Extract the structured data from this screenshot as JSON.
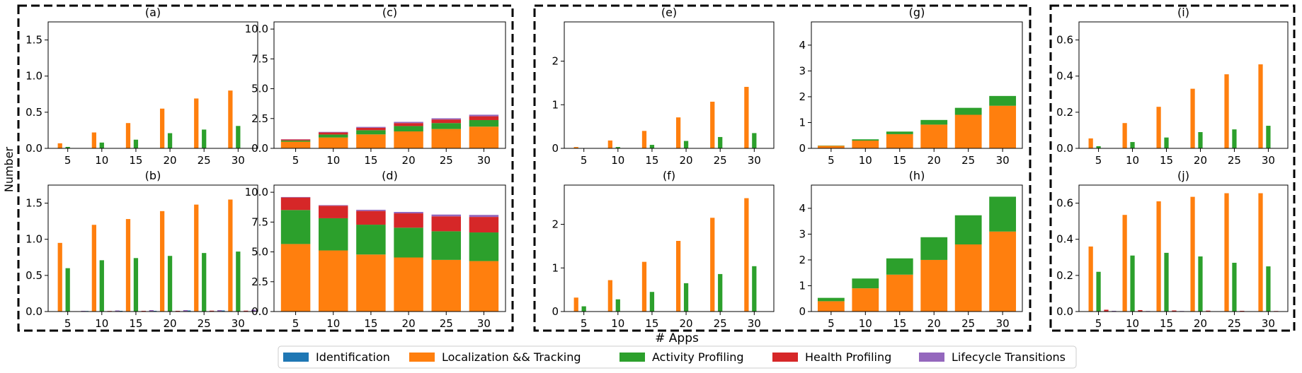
{
  "figure": {
    "ylabel": "Number",
    "xlabel": "# Apps",
    "legend": [
      {
        "label": "Identification",
        "color": "#1f77b4"
      },
      {
        "label": "Localization && Tracking",
        "color": "#ff7f0e"
      },
      {
        "label": "Activity Profiling",
        "color": "#2ca02c"
      },
      {
        "label": "Health Profiling",
        "color": "#d62728"
      },
      {
        "label": "Lifecycle Transitions",
        "color": "#9467bd"
      }
    ]
  },
  "chart_data": [
    {
      "title": "(a)",
      "type": "bar",
      "mode": "grouped",
      "categories": [
        "5",
        "10",
        "15",
        "20",
        "25",
        "30"
      ],
      "ylim": [
        0,
        1.75
      ],
      "yticks": [
        "0.0",
        "0.5",
        "1.0",
        "1.5"
      ],
      "series": [
        {
          "name": "Identification",
          "values": [
            0,
            0,
            0,
            0,
            0,
            0
          ]
        },
        {
          "name": "Localization && Tracking",
          "values": [
            0.07,
            0.22,
            0.35,
            0.55,
            0.69,
            0.8
          ]
        },
        {
          "name": "Activity Profiling",
          "values": [
            0.02,
            0.08,
            0.12,
            0.21,
            0.26,
            0.31
          ]
        },
        {
          "name": "Health Profiling",
          "values": [
            0,
            0,
            0,
            0,
            0,
            0
          ]
        },
        {
          "name": "Lifecycle Transitions",
          "values": [
            0,
            0,
            0,
            0,
            0,
            0
          ]
        }
      ]
    },
    {
      "title": "(b)",
      "type": "bar",
      "mode": "grouped",
      "categories": [
        "5",
        "10",
        "15",
        "20",
        "25",
        "30"
      ],
      "ylim": [
        0,
        1.75
      ],
      "yticks": [
        "0.0",
        "0.5",
        "1.0",
        "1.5"
      ],
      "series": [
        {
          "name": "Identification",
          "values": [
            0.005,
            0.008,
            0.01,
            0.01,
            0.015,
            0.015
          ]
        },
        {
          "name": "Localization && Tracking",
          "values": [
            0.95,
            1.2,
            1.28,
            1.39,
            1.48,
            1.55
          ]
        },
        {
          "name": "Activity Profiling",
          "values": [
            0.6,
            0.71,
            0.74,
            0.77,
            0.81,
            0.83
          ]
        },
        {
          "name": "Health Profiling",
          "values": [
            0.005,
            0.008,
            0.01,
            0.01,
            0.012,
            0.012
          ]
        },
        {
          "name": "Lifecycle Transitions",
          "values": [
            0.01,
            0.015,
            0.02,
            0.02,
            0.02,
            0.025
          ]
        }
      ]
    },
    {
      "title": "(c)",
      "type": "bar",
      "mode": "stacked",
      "categories": [
        "5",
        "10",
        "15",
        "20",
        "25",
        "30"
      ],
      "ylim": [
        0,
        10.6
      ],
      "yticks": [
        "0.0",
        "2.5",
        "5.0",
        "7.5",
        "10.0"
      ],
      "series": [
        {
          "name": "Identification",
          "values": [
            0.01,
            0.01,
            0.02,
            0.02,
            0.02,
            0.02
          ]
        },
        {
          "name": "Localization && Tracking",
          "values": [
            0.55,
            0.9,
            1.15,
            1.4,
            1.6,
            1.8
          ]
        },
        {
          "name": "Activity Profiling",
          "values": [
            0.1,
            0.25,
            0.35,
            0.45,
            0.5,
            0.55
          ]
        },
        {
          "name": "Health Profiling",
          "values": [
            0.08,
            0.17,
            0.2,
            0.25,
            0.3,
            0.32
          ]
        },
        {
          "name": "Lifecycle Transitions",
          "values": [
            0.02,
            0.05,
            0.08,
            0.1,
            0.1,
            0.13
          ]
        }
      ]
    },
    {
      "title": "(d)",
      "type": "bar",
      "mode": "stacked",
      "categories": [
        "5",
        "10",
        "15",
        "20",
        "25",
        "30"
      ],
      "ylim": [
        0,
        10.6
      ],
      "yticks": [
        "0.0",
        "2.5",
        "5.0",
        "7.5",
        "10.0"
      ],
      "series": [
        {
          "name": "Identification",
          "values": [
            0.01,
            0.02,
            0.03,
            0.03,
            0.03,
            0.03
          ]
        },
        {
          "name": "Localization && Tracking",
          "values": [
            5.65,
            5.1,
            4.75,
            4.5,
            4.3,
            4.2
          ]
        },
        {
          "name": "Activity Profiling",
          "values": [
            2.85,
            2.7,
            2.5,
            2.5,
            2.4,
            2.4
          ]
        },
        {
          "name": "Health Profiling",
          "values": [
            1.05,
            1.05,
            1.15,
            1.2,
            1.25,
            1.3
          ]
        },
        {
          "name": "Lifecycle Transitions",
          "values": [
            0.04,
            0.05,
            0.1,
            0.12,
            0.15,
            0.17
          ]
        }
      ]
    },
    {
      "title": "(e)",
      "type": "bar",
      "mode": "grouped",
      "categories": [
        "5",
        "10",
        "15",
        "20",
        "25",
        "30"
      ],
      "ylim": [
        0,
        2.9
      ],
      "yticks": [
        "0",
        "1",
        "2"
      ],
      "series": [
        {
          "name": "Identification",
          "values": [
            0,
            0,
            0,
            0,
            0,
            0
          ]
        },
        {
          "name": "Localization && Tracking",
          "values": [
            0.03,
            0.18,
            0.4,
            0.71,
            1.07,
            1.41
          ]
        },
        {
          "name": "Activity Profiling",
          "values": [
            0.005,
            0.03,
            0.08,
            0.17,
            0.26,
            0.35
          ]
        },
        {
          "name": "Health Profiling",
          "values": [
            0,
            0,
            0,
            0,
            0,
            0
          ]
        },
        {
          "name": "Lifecycle Transitions",
          "values": [
            0,
            0,
            0,
            0,
            0,
            0
          ]
        }
      ]
    },
    {
      "title": "(f)",
      "type": "bar",
      "mode": "grouped",
      "categories": [
        "5",
        "10",
        "15",
        "20",
        "25",
        "30"
      ],
      "ylim": [
        0,
        2.9
      ],
      "yticks": [
        "0",
        "1",
        "2"
      ],
      "series": [
        {
          "name": "Identification",
          "values": [
            0,
            0,
            0,
            0,
            0,
            0
          ]
        },
        {
          "name": "Localization && Tracking",
          "values": [
            0.32,
            0.72,
            1.14,
            1.62,
            2.15,
            2.6
          ]
        },
        {
          "name": "Activity Profiling",
          "values": [
            0.12,
            0.28,
            0.45,
            0.65,
            0.86,
            1.04
          ]
        },
        {
          "name": "Health Profiling",
          "values": [
            0,
            0,
            0,
            0,
            0,
            0
          ]
        },
        {
          "name": "Lifecycle Transitions",
          "values": [
            0,
            0,
            0,
            0,
            0,
            0
          ]
        }
      ]
    },
    {
      "title": "(g)",
      "type": "bar",
      "mode": "stacked",
      "categories": [
        "5",
        "10",
        "15",
        "20",
        "25",
        "30"
      ],
      "ylim": [
        0,
        4.9
      ],
      "yticks": [
        "0",
        "1",
        "2",
        "3",
        "4"
      ],
      "series": [
        {
          "name": "Identification",
          "values": [
            0,
            0,
            0,
            0,
            0,
            0
          ]
        },
        {
          "name": "Localization && Tracking",
          "values": [
            0.1,
            0.3,
            0.55,
            0.92,
            1.3,
            1.65
          ]
        },
        {
          "name": "Activity Profiling",
          "values": [
            0.01,
            0.05,
            0.1,
            0.18,
            0.27,
            0.38
          ]
        },
        {
          "name": "Health Profiling",
          "values": [
            0,
            0,
            0,
            0,
            0,
            0
          ]
        },
        {
          "name": "Lifecycle Transitions",
          "values": [
            0,
            0,
            0,
            0,
            0,
            0
          ]
        }
      ]
    },
    {
      "title": "(h)",
      "type": "bar",
      "mode": "stacked",
      "categories": [
        "5",
        "10",
        "15",
        "20",
        "25",
        "30"
      ],
      "ylim": [
        0,
        4.9
      ],
      "yticks": [
        "0",
        "1",
        "2",
        "3",
        "4"
      ],
      "series": [
        {
          "name": "Identification",
          "values": [
            0,
            0,
            0,
            0,
            0,
            0
          ]
        },
        {
          "name": "Localization && Tracking",
          "values": [
            0.4,
            0.9,
            1.43,
            2.0,
            2.6,
            3.1
          ]
        },
        {
          "name": "Activity Profiling",
          "values": [
            0.13,
            0.38,
            0.63,
            0.88,
            1.13,
            1.35
          ]
        },
        {
          "name": "Health Profiling",
          "values": [
            0,
            0,
            0,
            0,
            0,
            0
          ]
        },
        {
          "name": "Lifecycle Transitions",
          "values": [
            0,
            0,
            0,
            0,
            0,
            0
          ]
        }
      ]
    },
    {
      "title": "(i)",
      "type": "bar",
      "mode": "grouped",
      "categories": [
        "5",
        "10",
        "15",
        "20",
        "25",
        "30"
      ],
      "ylim": [
        0,
        0.7
      ],
      "yticks": [
        "0.0",
        "0.2",
        "0.4",
        "0.6"
      ],
      "series": [
        {
          "name": "Identification",
          "values": [
            0,
            0,
            0,
            0,
            0,
            0
          ]
        },
        {
          "name": "Localization && Tracking",
          "values": [
            0.055,
            0.14,
            0.23,
            0.33,
            0.41,
            0.465
          ]
        },
        {
          "name": "Activity Profiling",
          "values": [
            0.012,
            0.035,
            0.06,
            0.09,
            0.105,
            0.125
          ]
        },
        {
          "name": "Health Profiling",
          "values": [
            0,
            0,
            0,
            0,
            0,
            0
          ]
        },
        {
          "name": "Lifecycle Transitions",
          "values": [
            0,
            0,
            0,
            0,
            0,
            0
          ]
        }
      ]
    },
    {
      "title": "(j)",
      "type": "bar",
      "mode": "grouped",
      "categories": [
        "5",
        "10",
        "15",
        "20",
        "25",
        "30"
      ],
      "ylim": [
        0,
        0.7
      ],
      "yticks": [
        "0.0",
        "0.2",
        "0.4",
        "0.6"
      ],
      "series": [
        {
          "name": "Identification",
          "values": [
            0,
            0,
            0,
            0,
            0,
            0
          ]
        },
        {
          "name": "Localization && Tracking",
          "values": [
            0.36,
            0.535,
            0.61,
            0.635,
            0.655,
            0.655
          ]
        },
        {
          "name": "Activity Profiling",
          "values": [
            0.22,
            0.31,
            0.325,
            0.305,
            0.27,
            0.25
          ]
        },
        {
          "name": "Health Profiling",
          "values": [
            0.01,
            0.008,
            0.006,
            0.005,
            0.004,
            0.003
          ]
        },
        {
          "name": "Lifecycle Transitions",
          "values": [
            0.004,
            0.003,
            0.003,
            0.002,
            0.002,
            0.002
          ]
        }
      ]
    }
  ]
}
